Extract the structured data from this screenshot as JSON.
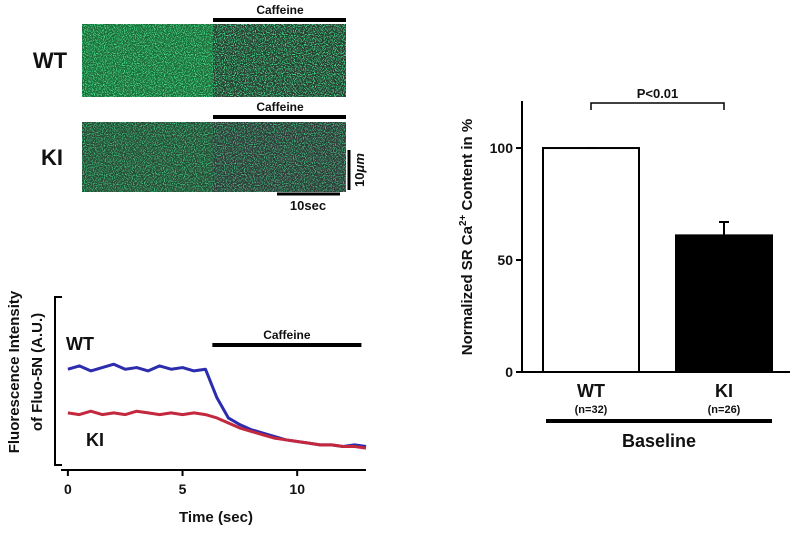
{
  "linescan": {
    "rows": [
      "WT",
      "KI"
    ],
    "caffeine": [
      "Caffeine",
      "Caffeine"
    ],
    "scale_space": [
      "10",
      "μm"
    ],
    "scale_time": "10sec"
  },
  "chart_data": [
    {
      "type": "line",
      "xlabel": "Time (sec)",
      "ylabel": [
        "Fluorescence Intensity",
        "of Fluo-5N (A.U.)"
      ],
      "x": [
        0,
        0.5,
        1,
        1.5,
        2,
        2.5,
        3,
        3.5,
        4,
        4.5,
        5,
        5.5,
        6,
        6.5,
        7,
        7.5,
        8,
        8.5,
        9,
        9.5,
        10,
        10.5,
        11,
        11.5,
        12,
        12.5,
        13
      ],
      "series": [
        {
          "name": "WT",
          "color": "#2c2cae",
          "values": [
            0.57,
            0.59,
            0.56,
            0.58,
            0.6,
            0.57,
            0.58,
            0.56,
            0.59,
            0.57,
            0.58,
            0.56,
            0.57,
            0.4,
            0.28,
            0.24,
            0.21,
            0.19,
            0.17,
            0.15,
            0.14,
            0.13,
            0.12,
            0.12,
            0.11,
            0.12,
            0.11
          ]
        },
        {
          "name": "KI",
          "color": "#c3283e",
          "values": [
            0.31,
            0.3,
            0.32,
            0.3,
            0.31,
            0.3,
            0.32,
            0.31,
            0.3,
            0.31,
            0.3,
            0.31,
            0.3,
            0.28,
            0.25,
            0.22,
            0.2,
            0.18,
            0.16,
            0.15,
            0.14,
            0.13,
            0.12,
            0.12,
            0.11,
            0.11,
            0.1
          ]
        }
      ],
      "annotation": {
        "text": "Caffeine",
        "x": [
          6.3,
          12.8
        ]
      },
      "xlim": [
        -0.3,
        13
      ],
      "xticks": [
        0,
        5,
        10
      ],
      "ylim": [
        0,
        1
      ]
    },
    {
      "type": "bar",
      "ylabel": [
        "Normalized SR Ca",
        "2+",
        " Content  in %"
      ],
      "categories": [
        "WT",
        "KI"
      ],
      "sublabels": [
        "(n=32)",
        "(n=26)"
      ],
      "values": [
        100,
        61
      ],
      "errors": [
        0,
        6
      ],
      "colors": [
        "#ffffff",
        "#000000"
      ],
      "ylim": [
        0,
        121
      ],
      "yticks": [
        0,
        50,
        100
      ],
      "significance": {
        "label": "P<0.01",
        "between": [
          0,
          1
        ]
      },
      "group_label": "Baseline"
    }
  ]
}
